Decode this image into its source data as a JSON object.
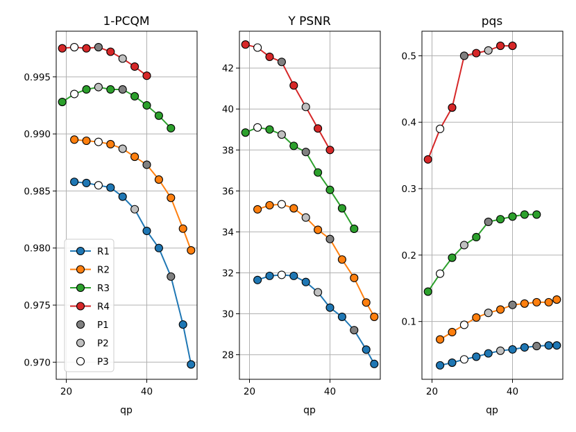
{
  "colors": {
    "R1": "#1f77b4",
    "R2": "#ff7f0e",
    "R3": "#2ca02c",
    "R4": "#d62728",
    "P1": "#808080",
    "P2": "#c0c0c0",
    "P3": "#ffffff",
    "grid": "#b0b0b0"
  },
  "chart_data": [
    {
      "type": "line",
      "title": "1-PCQM",
      "xlabel": "qp",
      "ylabel": "",
      "xlim": [
        17.5,
        52.5
      ],
      "ylim": [
        0.9685,
        0.999
      ],
      "xticks": [
        20,
        40
      ],
      "yticks": [
        0.97,
        0.975,
        0.98,
        0.985,
        0.99,
        0.995
      ],
      "ytick_labels": [
        "0.970",
        "0.975",
        "0.980",
        "0.985",
        "0.990",
        "0.995"
      ],
      "legend": {
        "position": "lower-left",
        "entries": [
          {
            "label": "R1",
            "kind": "line",
            "color_key": "R1"
          },
          {
            "label": "R2",
            "kind": "line",
            "color_key": "R2"
          },
          {
            "label": "R3",
            "kind": "line",
            "color_key": "R3"
          },
          {
            "label": "R4",
            "kind": "line",
            "color_key": "R4"
          },
          {
            "label": "P1",
            "kind": "marker",
            "color_key": "P1"
          },
          {
            "label": "P2",
            "kind": "marker",
            "color_key": "P2"
          },
          {
            "label": "P3",
            "kind": "marker",
            "color_key": "P3"
          }
        ]
      },
      "series": [
        {
          "name": "R1",
          "x": [
            22,
            25,
            28,
            31,
            34,
            37,
            40,
            43,
            46,
            49,
            51
          ],
          "y": [
            0.9858,
            0.9857,
            0.9855,
            0.9853,
            0.9845,
            0.9834,
            0.9815,
            0.98,
            0.9775,
            0.9733,
            0.9698
          ],
          "fills": [
            "R1",
            "R1",
            "P3",
            "R1",
            "R1",
            "P2",
            "R1",
            "R1",
            "P1",
            "R1",
            "R1"
          ]
        },
        {
          "name": "R2",
          "x": [
            22,
            25,
            28,
            31,
            34,
            37,
            40,
            43,
            46,
            49,
            51
          ],
          "y": [
            0.9895,
            0.9894,
            0.9893,
            0.9891,
            0.9887,
            0.988,
            0.9873,
            0.986,
            0.9844,
            0.9817,
            0.9798
          ],
          "fills": [
            "R2",
            "R2",
            "P3",
            "R2",
            "P2",
            "R2",
            "P1",
            "R2",
            "R2",
            "R2",
            "R2"
          ]
        },
        {
          "name": "R3",
          "x": [
            19,
            22,
            25,
            28,
            31,
            34,
            37,
            40,
            43,
            46
          ],
          "y": [
            0.9928,
            0.9935,
            0.9939,
            0.9941,
            0.9939,
            0.9939,
            0.9933,
            0.9925,
            0.9916,
            0.9905
          ],
          "fills": [
            "R3",
            "P3",
            "R3",
            "P2",
            "R3",
            "P1",
            "R3",
            "R3",
            "R3",
            "R3"
          ]
        },
        {
          "name": "R4",
          "x": [
            19,
            22,
            25,
            28,
            31,
            34,
            37,
            40
          ],
          "y": [
            0.9975,
            0.9976,
            0.9975,
            0.9976,
            0.9972,
            0.9966,
            0.9959,
            0.9951
          ],
          "fills": [
            "R4",
            "P3",
            "R4",
            "P1",
            "R4",
            "P2",
            "R4",
            "R4"
          ]
        }
      ]
    },
    {
      "type": "line",
      "title": "Y PSNR",
      "xlabel": "qp",
      "ylabel": "",
      "xlim": [
        17.5,
        52.5
      ],
      "ylim": [
        26.8,
        43.8
      ],
      "xticks": [
        20,
        40
      ],
      "yticks": [
        28,
        30,
        32,
        34,
        36,
        38,
        40,
        42
      ],
      "ytick_labels": [
        "28",
        "30",
        "32",
        "34",
        "36",
        "38",
        "40",
        "42"
      ],
      "series": [
        {
          "name": "R1",
          "x": [
            22,
            25,
            28,
            31,
            34,
            37,
            40,
            43,
            46,
            49,
            51
          ],
          "y": [
            31.65,
            31.85,
            31.9,
            31.85,
            31.55,
            31.05,
            30.3,
            29.85,
            29.2,
            28.25,
            27.55
          ],
          "fills": [
            "R1",
            "R1",
            "P3",
            "R1",
            "R1",
            "P2",
            "R1",
            "R1",
            "P1",
            "R1",
            "R1"
          ]
        },
        {
          "name": "R2",
          "x": [
            22,
            25,
            28,
            31,
            34,
            37,
            40,
            43,
            46,
            49,
            51
          ],
          "y": [
            35.1,
            35.3,
            35.35,
            35.15,
            34.7,
            34.1,
            33.65,
            32.65,
            31.75,
            30.55,
            29.85
          ],
          "fills": [
            "R2",
            "R2",
            "P3",
            "R2",
            "P2",
            "R2",
            "P1",
            "R2",
            "R2",
            "R2",
            "R2"
          ]
        },
        {
          "name": "R3",
          "x": [
            19,
            22,
            25,
            28,
            31,
            34,
            37,
            40,
            43,
            46
          ],
          "y": [
            38.85,
            39.1,
            39.0,
            38.75,
            38.2,
            37.9,
            36.9,
            36.05,
            35.15,
            34.15
          ],
          "fills": [
            "R3",
            "P3",
            "R3",
            "P2",
            "R3",
            "P1",
            "R3",
            "R3",
            "R3",
            "R3"
          ]
        },
        {
          "name": "R4",
          "x": [
            19,
            22,
            25,
            28,
            31,
            34,
            37,
            40
          ],
          "y": [
            43.15,
            43.0,
            42.55,
            42.3,
            41.15,
            40.1,
            39.05,
            38.0
          ],
          "fills": [
            "R4",
            "P3",
            "R4",
            "P1",
            "R4",
            "P2",
            "R4",
            "R4"
          ]
        }
      ]
    },
    {
      "type": "line",
      "title": "pqs",
      "xlabel": "qp",
      "ylabel": "",
      "xlim": [
        17.5,
        52.5
      ],
      "ylim": [
        0.013,
        0.537
      ],
      "xticks": [
        20,
        40
      ],
      "yticks": [
        0.1,
        0.2,
        0.3,
        0.4,
        0.5
      ],
      "ytick_labels": [
        "0.1",
        "0.2",
        "0.3",
        "0.4",
        "0.5"
      ],
      "series": [
        {
          "name": "R1",
          "x": [
            22,
            25,
            28,
            31,
            34,
            37,
            40,
            43,
            46,
            49,
            51
          ],
          "y": [
            0.034,
            0.038,
            0.043,
            0.047,
            0.052,
            0.056,
            0.058,
            0.061,
            0.063,
            0.064,
            0.064
          ],
          "fills": [
            "R1",
            "R1",
            "P3",
            "R1",
            "R1",
            "P2",
            "R1",
            "R1",
            "P1",
            "R1",
            "R1"
          ]
        },
        {
          "name": "R2",
          "x": [
            22,
            25,
            28,
            31,
            34,
            37,
            40,
            43,
            46,
            49,
            51
          ],
          "y": [
            0.073,
            0.084,
            0.095,
            0.106,
            0.113,
            0.118,
            0.125,
            0.127,
            0.129,
            0.129,
            0.133
          ],
          "fills": [
            "R2",
            "R2",
            "P3",
            "R2",
            "P2",
            "R2",
            "P1",
            "R2",
            "R2",
            "R2",
            "R2"
          ]
        },
        {
          "name": "R3",
          "x": [
            19,
            22,
            25,
            28,
            31,
            34,
            37,
            40,
            43,
            46
          ],
          "y": [
            0.145,
            0.172,
            0.196,
            0.215,
            0.227,
            0.25,
            0.254,
            0.258,
            0.261,
            0.261
          ],
          "fills": [
            "R3",
            "P3",
            "R3",
            "P2",
            "R3",
            "P1",
            "R3",
            "R3",
            "R3",
            "R3"
          ]
        },
        {
          "name": "R4",
          "x": [
            19,
            22,
            25,
            28,
            31,
            34,
            37,
            40
          ],
          "y": [
            0.344,
            0.39,
            0.422,
            0.5,
            0.504,
            0.508,
            0.515,
            0.515
          ],
          "fills": [
            "R4",
            "P3",
            "R4",
            "P1",
            "R4",
            "P2",
            "R4",
            "R4"
          ]
        }
      ]
    }
  ]
}
